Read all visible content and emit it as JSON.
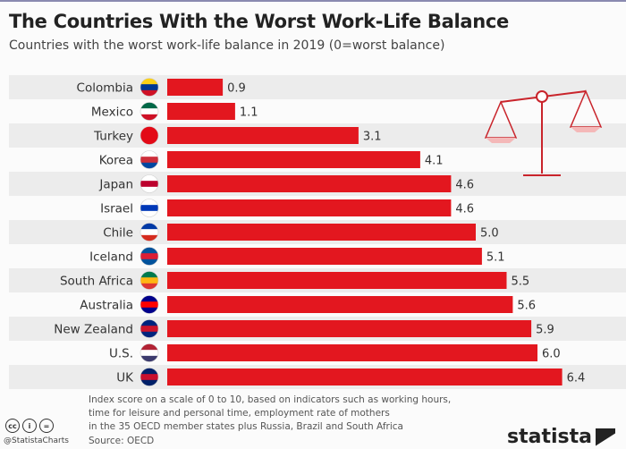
{
  "chart_data": {
    "type": "bar",
    "orientation": "horizontal",
    "title": "The Countries With the Worst Work-Life Balance",
    "subtitle": "Countries with the worst work-life balance in 2019 (0=worst balance)",
    "categories": [
      "Colombia",
      "Mexico",
      "Turkey",
      "Korea",
      "Japan",
      "Israel",
      "Chile",
      "Iceland",
      "South Africa",
      "Australia",
      "New Zealand",
      "U.S.",
      "UK"
    ],
    "values": [
      0.9,
      1.1,
      3.1,
      4.1,
      4.6,
      4.6,
      5.0,
      5.1,
      5.5,
      5.6,
      5.9,
      6.0,
      6.4
    ],
    "value_labels": [
      "0.9",
      "1.1",
      "3.1",
      "4.1",
      "4.6",
      "4.6",
      "5.0",
      "5.1",
      "5.5",
      "5.6",
      "5.9",
      "6.0",
      "6.4"
    ],
    "xlim": [
      0,
      10
    ],
    "bar_color": "#e3171f",
    "grid": false,
    "flags": [
      [
        "#fcd116",
        "#003893",
        "#ce1126"
      ],
      [
        "#006847",
        "#ffffff",
        "#ce1126"
      ],
      [
        "#e30a17",
        "#e30a17",
        "#e30a17"
      ],
      [
        "#ffffff",
        "#cd2e3a",
        "#0047a0"
      ],
      [
        "#ffffff",
        "#bc002d",
        "#ffffff"
      ],
      [
        "#ffffff",
        "#0038b8",
        "#ffffff"
      ],
      [
        "#0039a6",
        "#ffffff",
        "#d52b1e"
      ],
      [
        "#02529c",
        "#dc1e35",
        "#02529c"
      ],
      [
        "#007a4d",
        "#ffb612",
        "#de3831"
      ],
      [
        "#00008b",
        "#ff0000",
        "#00008b"
      ],
      [
        "#00247d",
        "#cc142b",
        "#00247d"
      ],
      [
        "#b22234",
        "#ffffff",
        "#3c3b6e"
      ],
      [
        "#012169",
        "#c8102e",
        "#012169"
      ]
    ]
  },
  "footer": {
    "note_lines": [
      "Index score on a scale of 0 to 10, based on indicators such as working hours,",
      "time for leisure and personal time, employment rate of mothers",
      "in the 35 OECD member states plus Russia, Brazil and South Africa"
    ],
    "source": "Source: OECD",
    "handle": "@StatistaCharts",
    "license_icons": [
      "cc",
      "i",
      "="
    ],
    "logo": "statista"
  }
}
